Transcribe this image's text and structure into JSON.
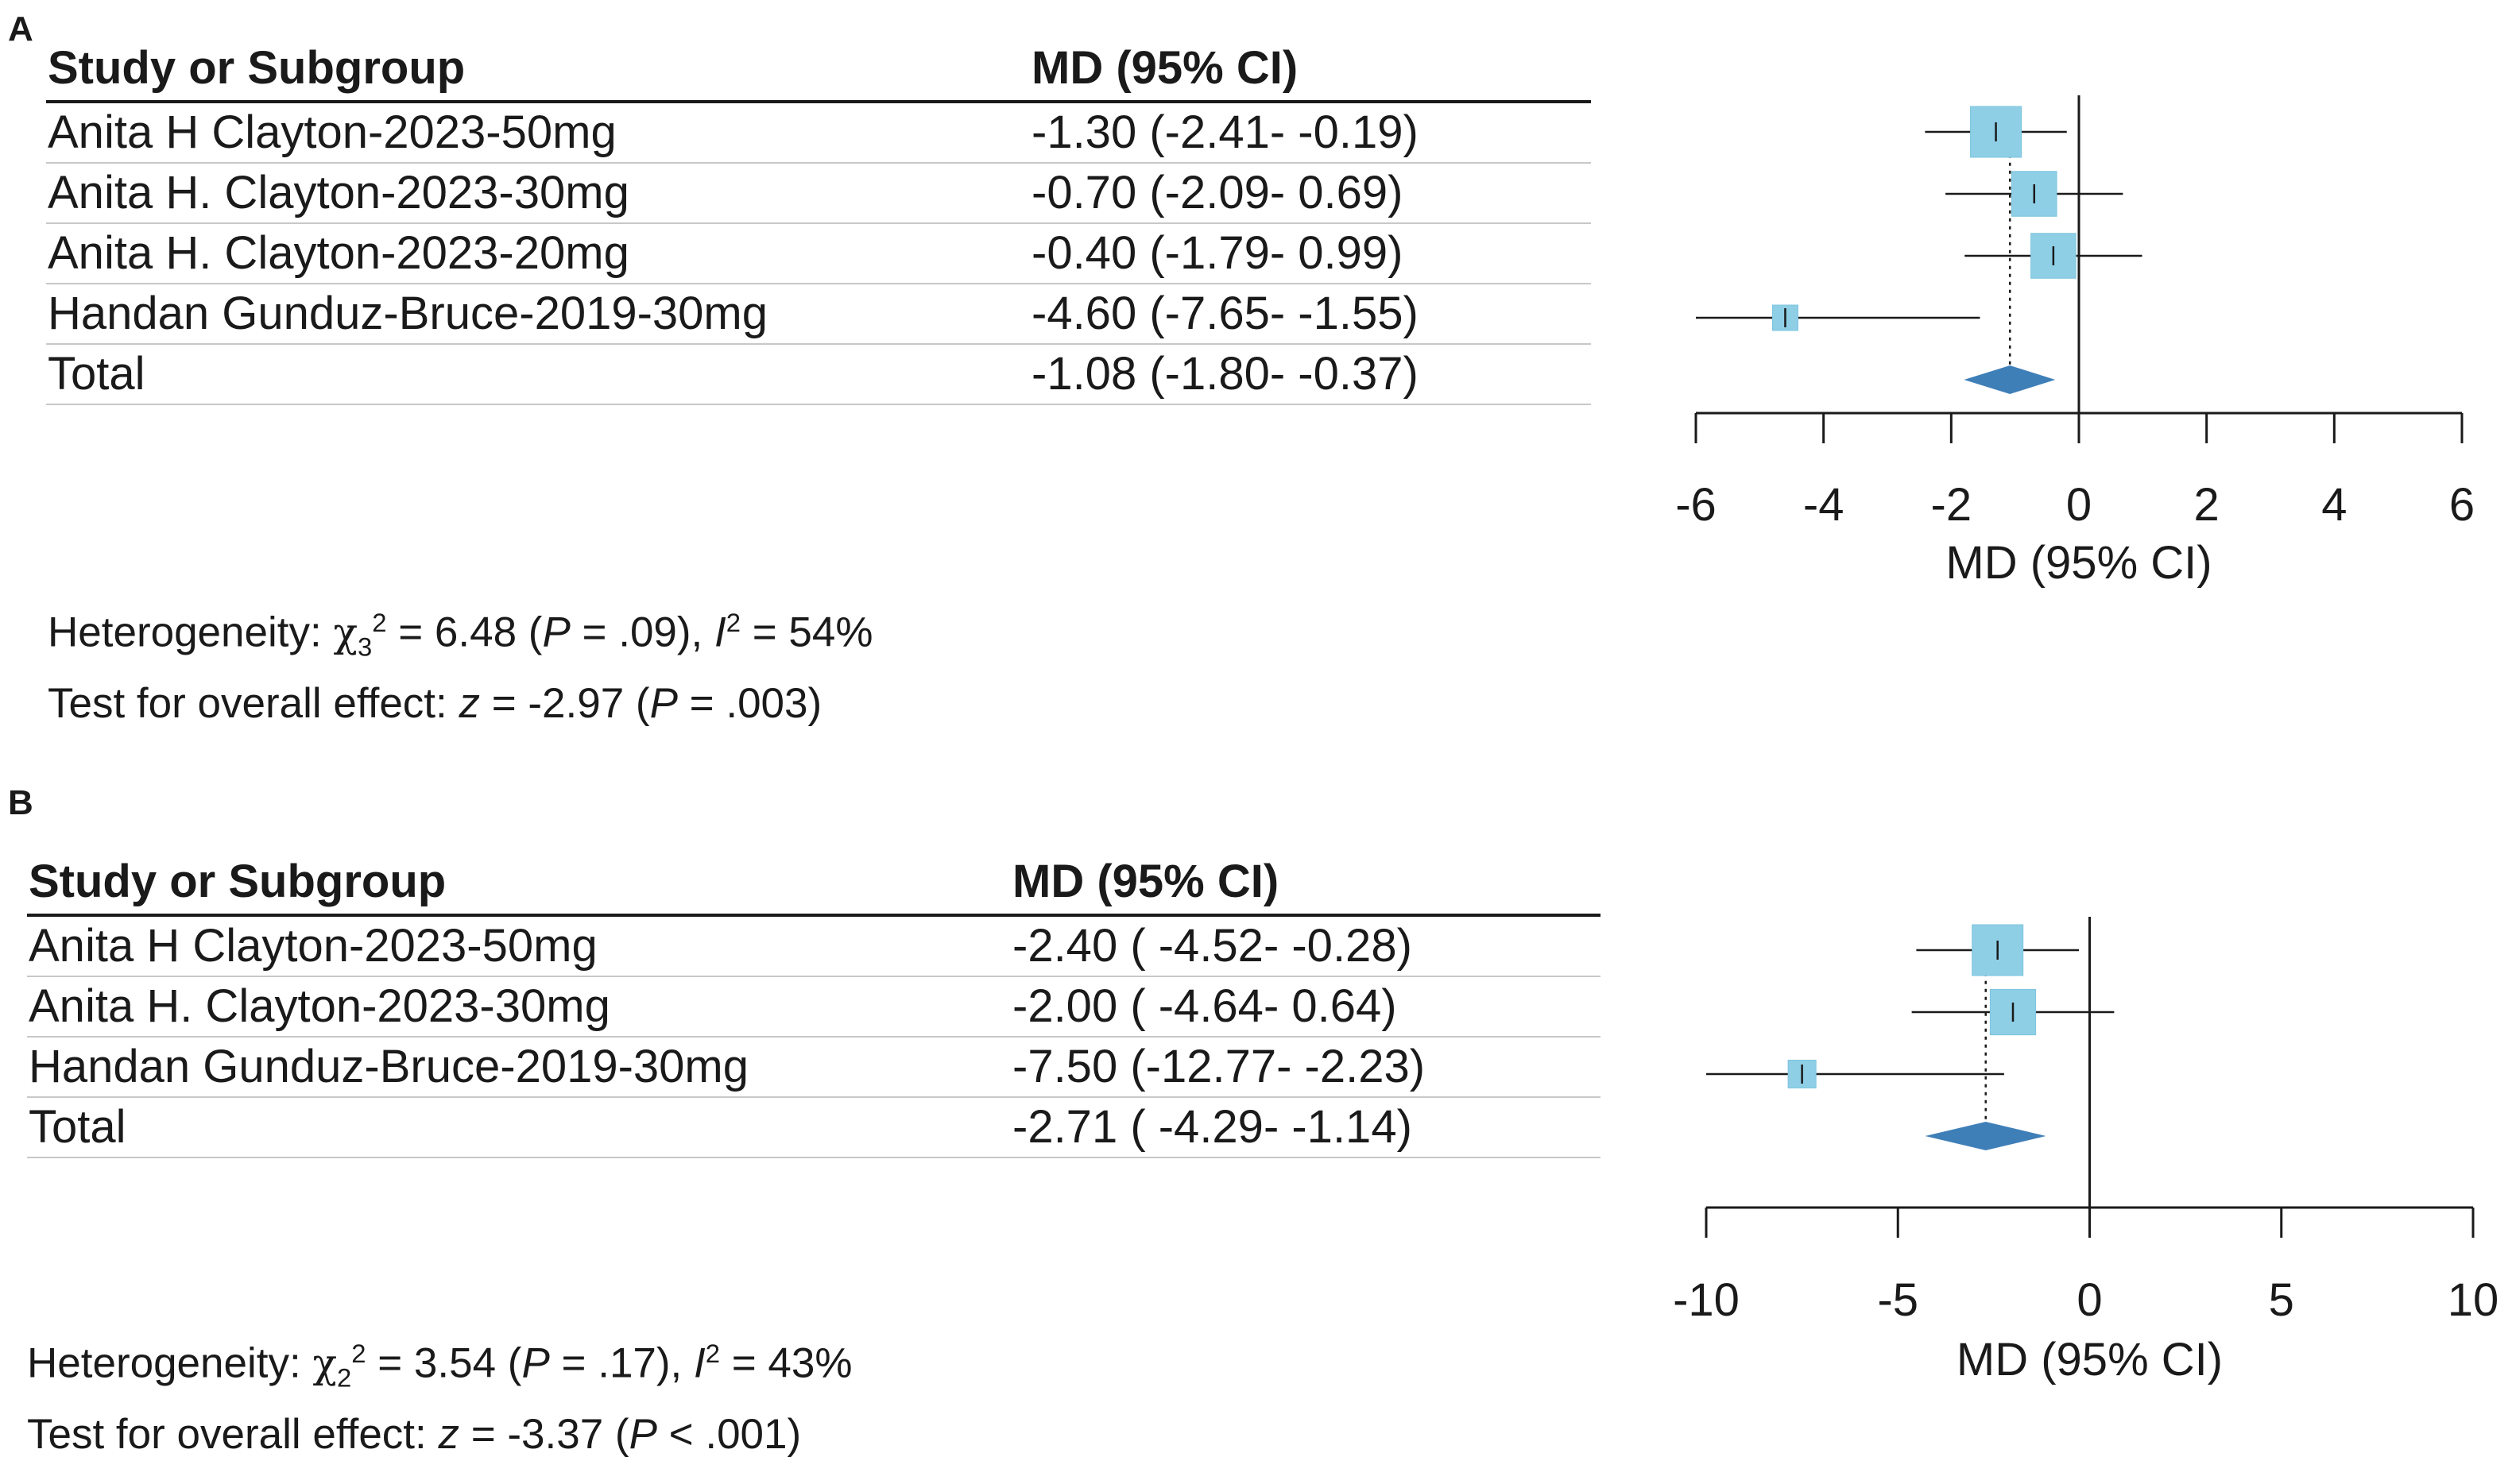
{
  "chart_data": [
    {
      "type": "forest",
      "panel_label": "A",
      "header_study": "Study or Subgroup",
      "header_md": "MD (95% CI)",
      "studies": [
        {
          "name": "Anita H Clayton-2023-50mg",
          "md_text": "-1.30 (-2.41- -0.19)",
          "md": -1.3,
          "lo": -2.41,
          "hi": -0.19,
          "weight": 1.0
        },
        {
          "name": "Anita H. Clayton-2023-30mg",
          "md_text": "-0.70 (-2.09- 0.69)",
          "md": -0.7,
          "lo": -2.09,
          "hi": 0.69,
          "weight": 0.78
        },
        {
          "name": "Anita H. Clayton-2023-20mg",
          "md_text": "-0.40 (-1.79- 0.99)",
          "md": -0.4,
          "lo": -1.79,
          "hi": 0.99,
          "weight": 0.78
        },
        {
          "name": "Handan Gunduz-Bruce-2019-30mg",
          "md_text": "-4.60 (-7.65- -1.55)",
          "md": -4.6,
          "lo": -7.65,
          "hi": -1.55,
          "weight": 0.25
        }
      ],
      "total": {
        "name": "Total",
        "md_text": "-1.08 (-1.80- -0.37)",
        "md": -1.08,
        "lo": -1.8,
        "hi": -0.37
      },
      "xlim": [
        -6,
        6
      ],
      "ticks": [
        -6,
        -4,
        -2,
        0,
        2,
        4,
        6
      ],
      "tick_labels": [
        "-6",
        "-4",
        "-2",
        "0",
        "2",
        "4",
        "6"
      ],
      "xlabel": "MD (95% CI)",
      "heterogeneity": {
        "prefix": "Heterogeneity: ",
        "chi_symbol": "χ",
        "df": "3",
        "chi_sup": "2",
        "chi_value": " = 6.48 (",
        "p_label": "P",
        "p_value": " = .09), ",
        "i_label": "I",
        "i_sup": "2",
        "i_value": " = 54%"
      },
      "overall": {
        "prefix": "Test for overall effect: ",
        "z_label": "z",
        "z_value": " = -2.97 (",
        "p_label": "P",
        "p_value": " = .003)"
      }
    },
    {
      "type": "forest",
      "panel_label": "B",
      "header_study": "Study or Subgroup",
      "header_md": "MD (95% CI)",
      "studies": [
        {
          "name": "Anita H Clayton-2023-50mg",
          "md_text": "-2.40 ( -4.52- -0.28)",
          "md": -2.4,
          "lo": -4.52,
          "hi": -0.28,
          "weight": 1.0
        },
        {
          "name": "Anita H. Clayton-2023-30mg",
          "md_text": "-2.00 ( -4.64- 0.64)",
          "md": -2.0,
          "lo": -4.64,
          "hi": 0.64,
          "weight": 0.8
        },
        {
          "name": "Handan Gunduz-Bruce-2019-30mg",
          "md_text": "-7.50 (-12.77- -2.23)",
          "md": -7.5,
          "lo": -12.77,
          "hi": -2.23,
          "weight": 0.3
        }
      ],
      "total": {
        "name": "Total",
        "md_text": "-2.71 ( -4.29- -1.14)",
        "md": -2.71,
        "lo": -4.29,
        "hi": -1.14
      },
      "xlim": [
        -10,
        10
      ],
      "ticks": [
        -10,
        -5,
        0,
        5,
        10
      ],
      "tick_labels": [
        "-10",
        "-5",
        "0",
        "5",
        "10"
      ],
      "xlabel": "MD (95% CI)",
      "heterogeneity": {
        "prefix": "Heterogeneity: ",
        "chi_symbol": "χ",
        "df": "2",
        "chi_sup": "2",
        "chi_value": " = 3.54 (",
        "p_label": "P",
        "p_value": " = .17), ",
        "i_label": "I",
        "i_sup": "2",
        "i_value": " = 43%"
      },
      "overall": {
        "prefix": "Test for overall effect: ",
        "z_label": "z",
        "z_value": " = -3.37 (",
        "p_label": "P",
        "p_value": " < .001)"
      }
    }
  ],
  "colors": {
    "square": "#8ecfe6",
    "square_edge": "#7cc4de",
    "diamond": "#3f7fb8",
    "line": "#1a1a1a"
  }
}
